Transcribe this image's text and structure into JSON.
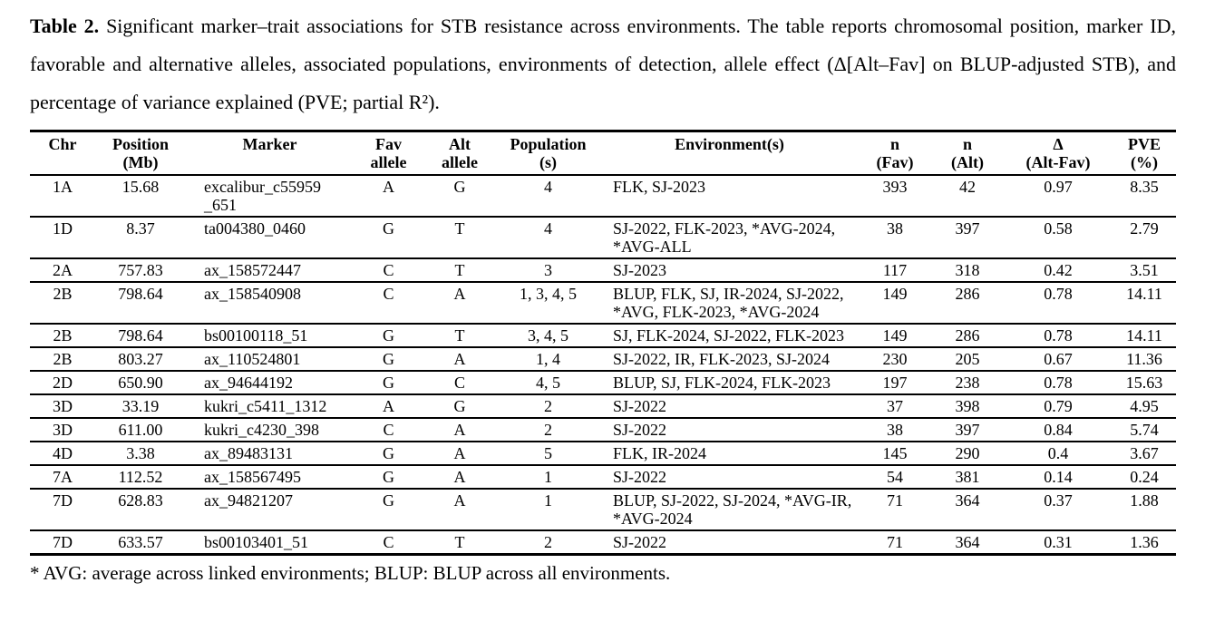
{
  "caption": {
    "label": "Table 2.",
    "text": " Significant marker–trait associations for STB resistance across environments. The table reports chromosomal position, marker ID, favorable and alternative alleles, associated populations, environments of detection, allele effect (Δ[Alt–Fav] on BLUP-adjusted STB), and percentage of variance explained (PVE; partial R²)."
  },
  "table": {
    "columns": [
      "Chr",
      "Position\n(Mb)",
      "Marker",
      "Fav\nallele",
      "Alt\nallele",
      "Population\n(s)",
      "Environment(s)",
      "n\n(Fav)",
      "n\n(Alt)",
      "Δ\n(Alt-Fav)",
      "PVE\n(%)"
    ],
    "rows": [
      [
        "1A",
        "15.68",
        "excalibur_c55959\n_651",
        "A",
        "G",
        "4",
        "FLK, SJ-2023",
        "393",
        "42",
        "0.97",
        "8.35"
      ],
      [
        "1D",
        "8.37",
        "ta004380_0460",
        "G",
        "T",
        "4",
        "SJ-2022, FLK-2023, *AVG-2024,\n*AVG-ALL",
        "38",
        "397",
        "0.58",
        "2.79"
      ],
      [
        "2A",
        "757.83",
        "ax_158572447",
        "C",
        "T",
        "3",
        "SJ-2023",
        "117",
        "318",
        "0.42",
        "3.51"
      ],
      [
        "2B",
        "798.64",
        "ax_158540908",
        "C",
        "A",
        "1, 3, 4, 5",
        "BLUP, FLK, SJ, IR-2024, SJ-2022,\n*AVG, FLK-2023, *AVG-2024",
        "149",
        "286",
        "0.78",
        "14.11"
      ],
      [
        "2B",
        "798.64",
        "bs00100118_51",
        "G",
        "T",
        "3, 4, 5",
        "SJ, FLK-2024, SJ-2022, FLK-2023",
        "149",
        "286",
        "0.78",
        "14.11"
      ],
      [
        "2B",
        "803.27",
        "ax_110524801",
        "G",
        "A",
        "1, 4",
        "SJ-2022, IR, FLK-2023, SJ-2024",
        "230",
        "205",
        "0.67",
        "11.36"
      ],
      [
        "2D",
        "650.90",
        "ax_94644192",
        "G",
        "C",
        "4, 5",
        "BLUP, SJ, FLK-2024, FLK-2023",
        "197",
        "238",
        "0.78",
        "15.63"
      ],
      [
        "3D",
        "33.19",
        "kukri_c5411_1312",
        "A",
        "G",
        "2",
        "SJ-2022",
        "37",
        "398",
        "0.79",
        "4.95"
      ],
      [
        "3D",
        "611.00",
        "kukri_c4230_398",
        "C",
        "A",
        "2",
        "SJ-2022",
        "38",
        "397",
        "0.84",
        "5.74"
      ],
      [
        "4D",
        "3.38",
        "ax_89483131",
        "G",
        "A",
        "5",
        "FLK, IR-2024",
        "145",
        "290",
        "0.4",
        "3.67"
      ],
      [
        "7A",
        "112.52",
        "ax_158567495",
        "G",
        "A",
        "1",
        "SJ-2022",
        "54",
        "381",
        "0.14",
        "0.24"
      ],
      [
        "7D",
        "628.83",
        "ax_94821207",
        "G",
        "A",
        "1",
        "BLUP, SJ-2022, SJ-2024, *AVG-IR,\n*AVG-2024",
        "71",
        "364",
        "0.37",
        "1.88"
      ],
      [
        "7D",
        "633.57",
        "bs00103401_51",
        "C",
        "T",
        "2",
        "SJ-2022",
        "71",
        "364",
        "0.31",
        "1.36"
      ]
    ]
  },
  "footnote": "* AVG: average across linked environments; BLUP: BLUP across all environments."
}
